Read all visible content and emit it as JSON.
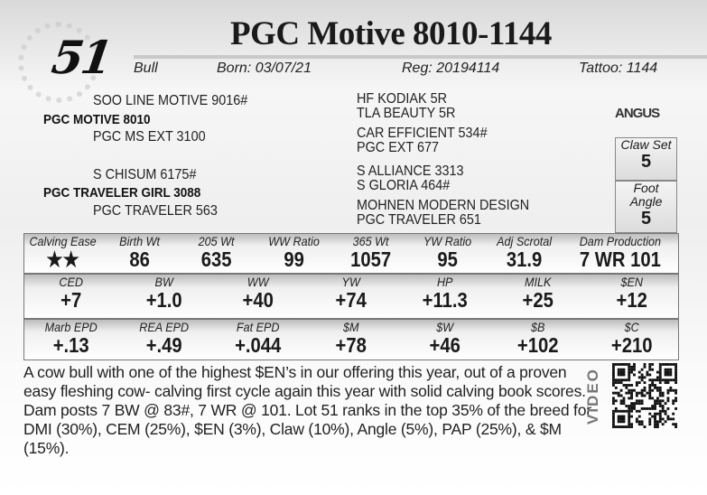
{
  "lot_number": "51",
  "title": "PGC Motive 8010-1144",
  "info": {
    "sex": "Bull",
    "born": "Born:  03/07/21",
    "reg": "Reg:  20194114",
    "tattoo": "Tattoo:  1144"
  },
  "pedigree": {
    "sire_sire": "SOO LINE MOTIVE 9016#",
    "sire": "PGC MOTIVE 8010",
    "sire_dam": "PGC MS EXT 3100",
    "dam_sire": "S CHISUM 6175#",
    "dam": "PGC TRAVELER GIRL 3088",
    "dam_dam": "PGC TRAVELER 563",
    "right": [
      "HF KODIAK 5R",
      "TLA BEAUTY 5R",
      "CAR EFFICIENT 534#",
      "PGC EXT 677",
      "S ALLIANCE 3313",
      "S GLORIA 464#",
      "MOHNEN MODERN DESIGN",
      "PGC TRAVELER 651"
    ]
  },
  "logo": "ANGUS",
  "claw_set": {
    "label": "Claw Set",
    "value": "5"
  },
  "foot_angle": {
    "label": "Foot Angle",
    "value": "5"
  },
  "row1": [
    {
      "l": "Calving Ease",
      "v": "★★"
    },
    {
      "l": "Birth Wt",
      "v": "86"
    },
    {
      "l": "205 Wt",
      "v": "635"
    },
    {
      "l": "WW Ratio",
      "v": "99"
    },
    {
      "l": "365 Wt",
      "v": "1057"
    },
    {
      "l": "YW Ratio",
      "v": "95"
    },
    {
      "l": "Adj Scrotal",
      "v": "31.9"
    },
    {
      "l": "Dam Production",
      "v": "7 WR 101"
    }
  ],
  "row2": [
    {
      "l": "CED",
      "v": "+7"
    },
    {
      "l": "BW",
      "v": "+1.0"
    },
    {
      "l": "WW",
      "v": "+40"
    },
    {
      "l": "YW",
      "v": "+74"
    },
    {
      "l": "HP",
      "v": "+11.3"
    },
    {
      "l": "MILK",
      "v": "+25"
    },
    {
      "l": "$EN",
      "v": "+12"
    }
  ],
  "row3": [
    {
      "l": "Marb EPD",
      "v": "+.13"
    },
    {
      "l": "REA EPD",
      "v": "+.49"
    },
    {
      "l": "Fat EPD",
      "v": "+.044"
    },
    {
      "l": "$M",
      "v": "+78"
    },
    {
      "l": "$W",
      "v": "+46"
    },
    {
      "l": "$B",
      "v": "+102"
    },
    {
      "l": "$C",
      "v": "+210"
    }
  ],
  "description": "A cow bull with one of the highest $EN’s in our offering this year, out of a proven easy fleshing cow- calving first cycle again this year with solid calving book scores. Dam posts 7 BW @ 83#, 7 WR @ 101. Lot 51 ranks in the top 35% of the breed for DMI (30%), CEM (25%), $EN (3%), Claw (10%), Angle (5%), PAP (25%), & $M (15%).",
  "video_label": "VIDEO"
}
